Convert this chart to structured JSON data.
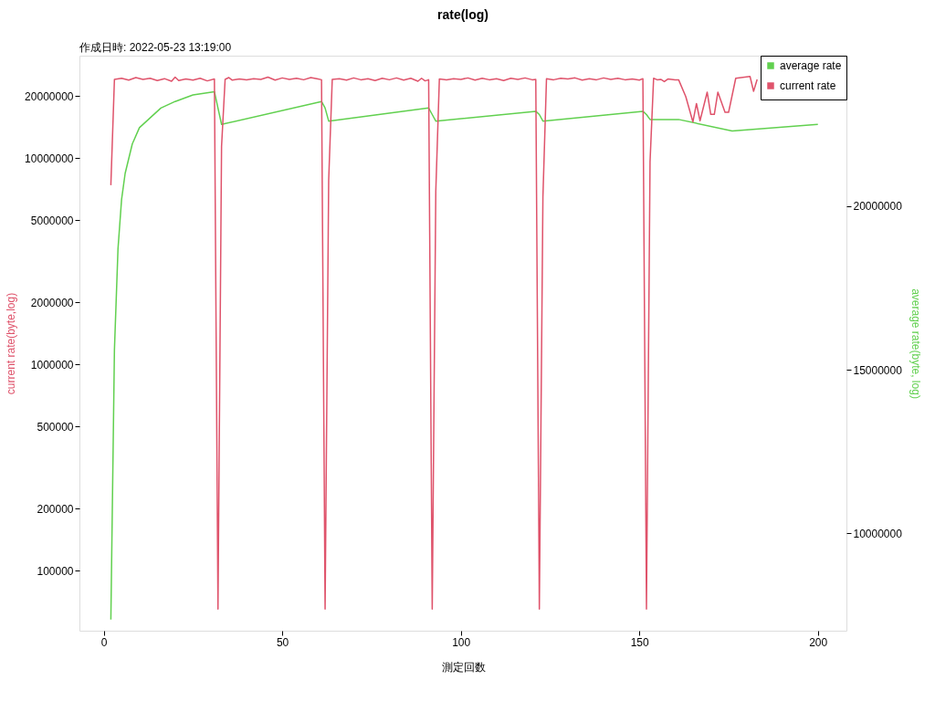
{
  "chart_data": {
    "type": "line",
    "title": "rate(log)",
    "subtitle": "作成日時: 2022-05-23 13:19:00",
    "xlabel": "測定回数",
    "ylabel": "current rate(byte,log)",
    "y2label": "average rate(byte, log)",
    "xlim": [
      -6.8,
      208
    ],
    "xticks": [
      0,
      50,
      100,
      150,
      200
    ],
    "ylim": [
      51300,
      31400000
    ],
    "yticks": [
      100000,
      200000,
      500000,
      1000000,
      2000000,
      5000000,
      10000000,
      20000000
    ],
    "y2lim": [
      7020000,
      24600000
    ],
    "y2ticks": [
      10000000,
      15000000,
      20000000
    ],
    "log": "y",
    "grid": false,
    "legend": "top right",
    "marker": "none",
    "line_style": "solid",
    "series": [
      {
        "name": "average rate",
        "color": "#61d04f",
        "axis": "y2",
        "x": [
          2,
          3,
          4,
          5,
          6,
          8,
          10,
          13,
          16,
          20,
          25,
          31,
          32,
          33,
          61,
          62,
          63,
          91,
          92,
          93,
          121,
          122,
          123,
          151,
          152,
          153,
          161,
          176,
          200
        ],
        "values": [
          7360000,
          15600000,
          18700000,
          20200000,
          21000000,
          21900000,
          22400000,
          22700000,
          23000000,
          23200000,
          23400000,
          23500000,
          23000000,
          22500000,
          23200000,
          23000000,
          22600000,
          23000000,
          22800000,
          22600000,
          22900000,
          22800000,
          22600000,
          22900000,
          22800000,
          22650000,
          22650000,
          22300000,
          22500000
        ]
      },
      {
        "name": "current rate",
        "color": "#df536b",
        "axis": "y",
        "x": [
          2,
          3,
          5,
          7,
          9,
          11,
          13,
          15,
          17,
          19,
          20,
          21,
          23,
          25,
          27,
          29,
          31,
          32,
          33,
          34,
          35,
          36,
          38,
          40,
          42,
          44,
          46,
          48,
          50,
          52,
          54,
          56,
          58,
          60,
          61,
          62,
          63,
          64,
          66,
          68,
          70,
          72,
          74,
          76,
          78,
          80,
          82,
          84,
          86,
          88,
          89,
          90,
          91,
          92,
          93,
          94,
          96,
          98,
          100,
          102,
          104,
          106,
          108,
          110,
          112,
          114,
          116,
          118,
          120,
          121,
          122,
          123,
          124,
          126,
          128,
          130,
          132,
          134,
          136,
          138,
          140,
          142,
          144,
          146,
          148,
          150,
          151,
          152,
          153,
          154,
          155,
          156,
          157,
          158,
          160,
          161,
          163,
          165,
          166,
          167,
          169,
          170,
          171,
          172,
          174,
          175,
          177,
          181,
          182,
          183
        ],
        "values": [
          7400000,
          24100000,
          24400000,
          23900000,
          24600000,
          24100000,
          24400000,
          23800000,
          24300000,
          23600000,
          24700000,
          23800000,
          24200000,
          23900000,
          24400000,
          23700000,
          24200000,
          65300,
          11400000,
          24100000,
          24600000,
          23900000,
          24200000,
          24000000,
          24300000,
          24100000,
          24700000,
          23900000,
          24500000,
          24100000,
          24400000,
          24000000,
          24600000,
          24200000,
          24000000,
          65300,
          7800000,
          24100000,
          24300000,
          23900000,
          24500000,
          24000000,
          24300000,
          23800000,
          24400000,
          24000000,
          24500000,
          23900000,
          24400000,
          23600000,
          24400000,
          23700000,
          24000000,
          65300,
          6900000,
          24200000,
          24000000,
          24300000,
          24100000,
          24500000,
          23900000,
          24400000,
          24000000,
          24300000,
          23800000,
          24400000,
          24100000,
          24500000,
          24000000,
          24100000,
          65300,
          6500000,
          24300000,
          24000000,
          24400000,
          24200000,
          24500000,
          23900000,
          24300000,
          24000000,
          24500000,
          24100000,
          24400000,
          24000000,
          24200000,
          23900000,
          24300000,
          65300,
          9600000,
          24400000,
          24000000,
          24100000,
          23500000,
          24200000,
          24000000,
          24000000,
          19900000,
          15000000,
          18400000,
          15200000,
          20900000,
          16300000,
          16300000,
          20900000,
          16700000,
          16700000,
          24400000,
          24900000,
          21100000,
          24100000
        ]
      }
    ]
  }
}
